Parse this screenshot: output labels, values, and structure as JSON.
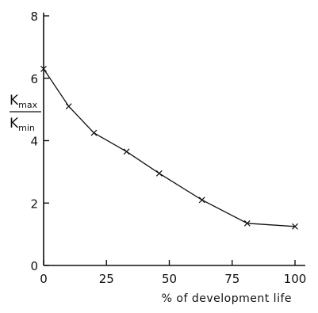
{
  "chart_data": {
    "type": "line",
    "title": "",
    "xlabel": "% of development life",
    "ylabel": {
      "numerator": {
        "main": "K",
        "sub": "max"
      },
      "denominator": {
        "main": "K",
        "sub": "min"
      }
    },
    "xlim": [
      0,
      100
    ],
    "ylim": [
      0,
      8
    ],
    "xticks": [
      0,
      25,
      50,
      75,
      100
    ],
    "yticks": [
      0,
      2,
      4,
      6,
      8
    ],
    "grid": false,
    "marker": "x",
    "series": [
      {
        "x": [
          0,
          10,
          20,
          33,
          46,
          63,
          81,
          100
        ],
        "y": [
          6.3,
          5.1,
          4.25,
          3.65,
          2.95,
          2.1,
          1.35,
          1.25
        ]
      }
    ]
  }
}
